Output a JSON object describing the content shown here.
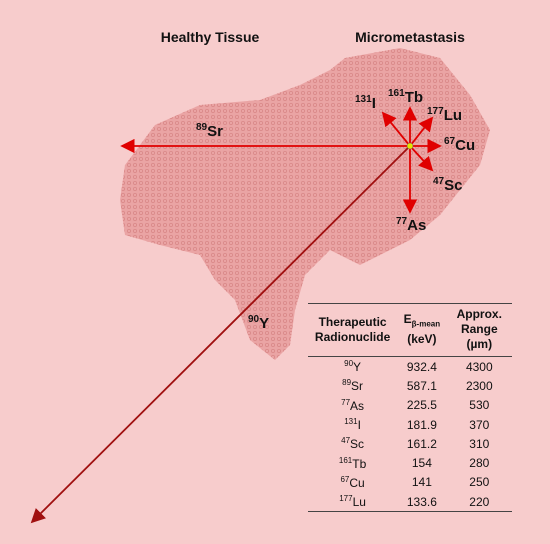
{
  "regions": {
    "healthy": "Healthy Tissue",
    "tumor": "Micrometastasis"
  },
  "arrows": [
    {
      "mass": "89",
      "symbol": "Sr"
    },
    {
      "mass": "90",
      "symbol": "Y"
    },
    {
      "mass": "77",
      "symbol": "As"
    },
    {
      "mass": "131",
      "symbol": "I"
    },
    {
      "mass": "161",
      "symbol": "Tb"
    },
    {
      "mass": "177",
      "symbol": "Lu"
    },
    {
      "mass": "67",
      "symbol": "Cu"
    },
    {
      "mass": "47",
      "symbol": "Sc"
    }
  ],
  "table": {
    "header": {
      "nuclide": "Therapeutic Radionuclide",
      "energy": "E",
      "energy_sub": "β-mean",
      "energy_unit": "(keV)",
      "range": "Approx. Range (µm)"
    },
    "rows": [
      [
        "90",
        "Y",
        932.4,
        4300
      ],
      [
        "89",
        "Sr",
        587.1,
        2300
      ],
      [
        "77",
        "As",
        225.5,
        530
      ],
      [
        "131",
        "I",
        181.9,
        370
      ],
      [
        "47",
        "Sc",
        161.2,
        310
      ],
      [
        "161",
        "Tb",
        154,
        280
      ],
      [
        "67",
        "Cu",
        141,
        250
      ],
      [
        "177",
        "Lu",
        133.6,
        220
      ]
    ]
  }
}
